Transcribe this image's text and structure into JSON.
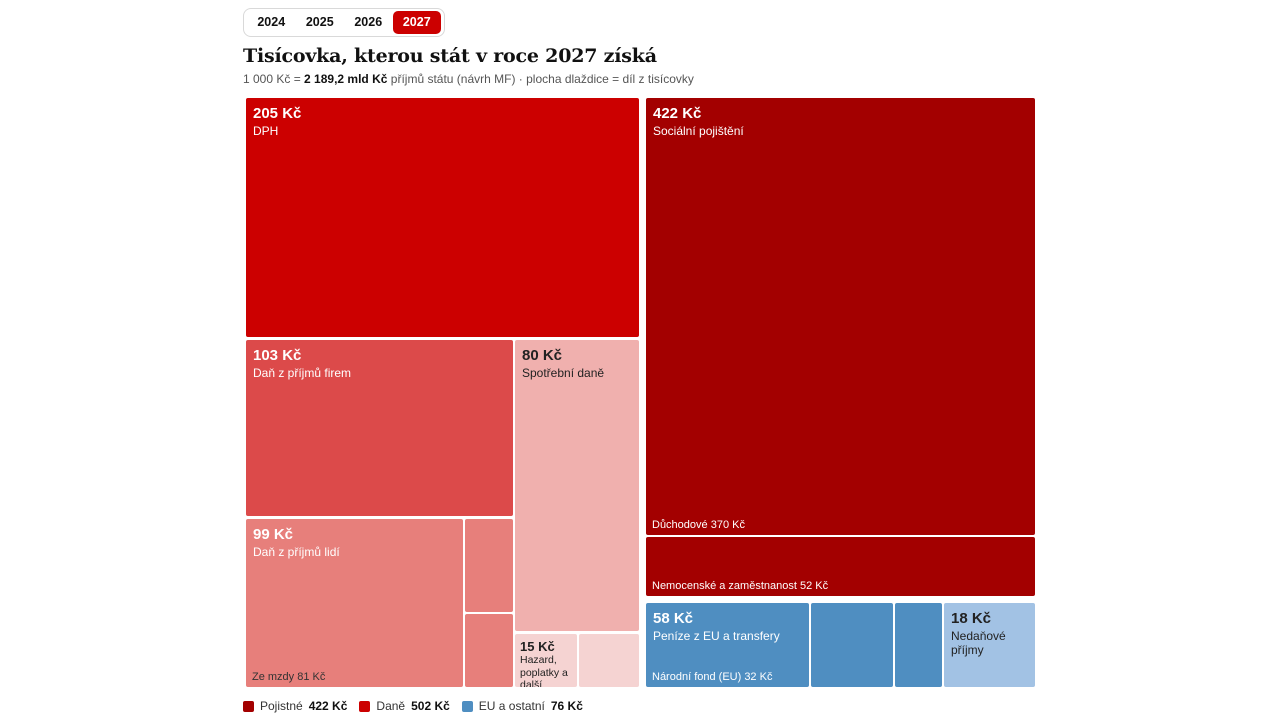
{
  "tabs": [
    {
      "label": "2024",
      "active": false
    },
    {
      "label": "2025",
      "active": false
    },
    {
      "label": "2026",
      "active": false
    },
    {
      "label": "2027",
      "active": true
    }
  ],
  "title": "Tisícovka, kterou stát v roce 2027 získá",
  "subtitle": {
    "prefix": "1 000 Kč = ",
    "bold": "2 189,2 mld Kč",
    "suffix": " příjmů státu (návrh MF) · plocha dlaždice = díl z tisícovky"
  },
  "colors": {
    "pojistne": "#a30000",
    "dph": "#cc0000",
    "dan_firmy": "#dc4a4a",
    "dan_lide": "#e77f7b",
    "spotrebni": "#f0b0ae",
    "hazard": "#f5d3d2",
    "eu": "#4f8ec1",
    "nedanove": "#a2c2e4"
  },
  "chart_data": {
    "type": "treemap",
    "unit": "Kč",
    "total": 1000,
    "tiles": [
      {
        "value": "205 Kč",
        "amount": 205,
        "label": "DPH",
        "group": "Daně"
      },
      {
        "value": "422 Kč",
        "amount": 422,
        "label": "Sociální pojištění",
        "group": "Pojistné",
        "children": [
          {
            "label": "Důchodové 370 Kč",
            "amount": 370
          },
          {
            "label": "Nemocenské a zaměstnanost 52 Kč",
            "amount": 52
          }
        ]
      },
      {
        "value": "103 Kč",
        "amount": 103,
        "label": "Daň z příjmů firem",
        "group": "Daně"
      },
      {
        "value": "80 Kč",
        "amount": 80,
        "label": "Spotřební daně",
        "group": "Daně"
      },
      {
        "value": "99 Kč",
        "amount": 99,
        "label": "Daň z příjmů lidí",
        "group": "Daně",
        "children": [
          {
            "label": "Ze mzdy 81 Kč",
            "amount": 81
          }
        ]
      },
      {
        "value": "15 Kč",
        "amount": 15,
        "label": "Hazard, poplatky a další",
        "group": "Daně"
      },
      {
        "value": "58 Kč",
        "amount": 58,
        "label": "Peníze z EU a transfery",
        "group": "EU a ostatní",
        "children": [
          {
            "label": "Národní fond (EU) 32 Kč",
            "amount": 32
          }
        ]
      },
      {
        "value": "18 Kč",
        "amount": 18,
        "label": "Nedaňové příjmy",
        "group": "EU a ostatní"
      }
    ]
  },
  "legend": [
    {
      "label": "Pojistné",
      "value": "422 Kč",
      "color": "#a30000"
    },
    {
      "label": "Daně",
      "value": "502 Kč",
      "color": "#cc0000"
    },
    {
      "label": "EU a ostatní",
      "value": "76 Kč",
      "color": "#4f8ec1"
    }
  ]
}
